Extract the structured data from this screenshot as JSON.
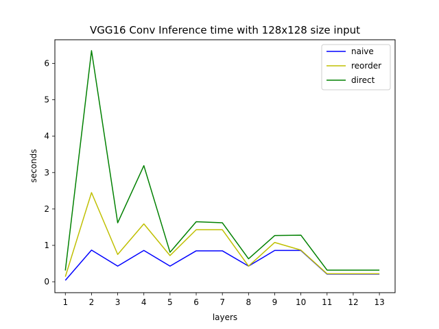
{
  "chart_data": {
    "type": "line",
    "title": "VGG16 Conv Inference time with 128x128 size input",
    "xlabel": "layers",
    "ylabel": "seconds",
    "x": [
      1,
      2,
      3,
      4,
      5,
      6,
      7,
      8,
      9,
      10,
      11,
      12,
      13
    ],
    "xlim": [
      0.6,
      13.6
    ],
    "ylim": [
      -0.3,
      6.65
    ],
    "yticks": [
      0,
      1,
      2,
      3,
      4,
      5,
      6
    ],
    "grid": false,
    "legend_position": "top-right",
    "series": [
      {
        "name": "naive",
        "color": "#0000ff",
        "values": [
          0.04,
          0.87,
          0.43,
          0.86,
          0.43,
          0.85,
          0.85,
          0.43,
          0.86,
          0.86,
          0.21,
          0.21,
          0.21
        ]
      },
      {
        "name": "reorder",
        "color": "#bfbf00",
        "values": [
          0.14,
          2.45,
          0.75,
          1.59,
          0.72,
          1.43,
          1.43,
          0.43,
          1.08,
          0.87,
          0.22,
          0.22,
          0.22
        ]
      },
      {
        "name": "direct",
        "color": "#008000",
        "values": [
          0.31,
          6.35,
          1.62,
          3.19,
          0.81,
          1.65,
          1.62,
          0.63,
          1.27,
          1.28,
          0.32,
          0.32,
          0.32
        ]
      }
    ]
  }
}
